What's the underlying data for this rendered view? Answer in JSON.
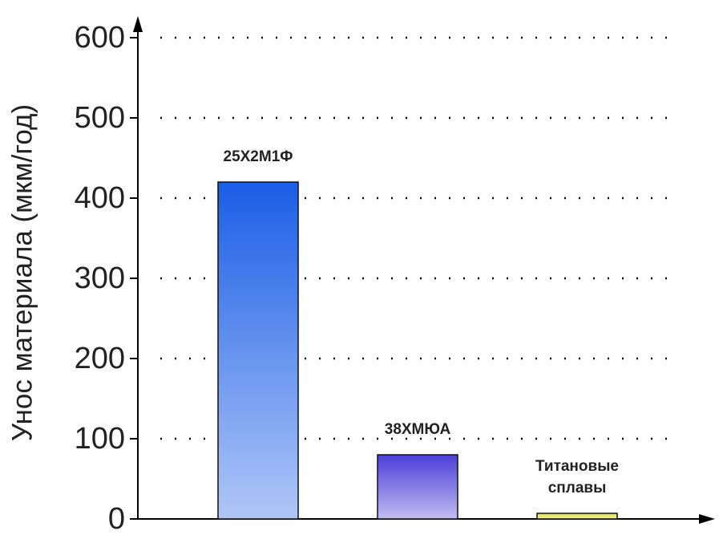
{
  "chart_data": {
    "type": "bar",
    "y_label": "Унос материала (мкм/год)",
    "categories": [
      "25Х2М1Ф",
      "38ХМЮА",
      "Титановые сплавы"
    ],
    "values": [
      420,
      80,
      7
    ],
    "colors": [
      "#1a5ee6",
      "#4a3fd8",
      "#e0e030"
    ],
    "ylim": [
      0,
      600
    ],
    "yticks": [
      0,
      100,
      200,
      300,
      400,
      500,
      600
    ],
    "grid": true
  }
}
